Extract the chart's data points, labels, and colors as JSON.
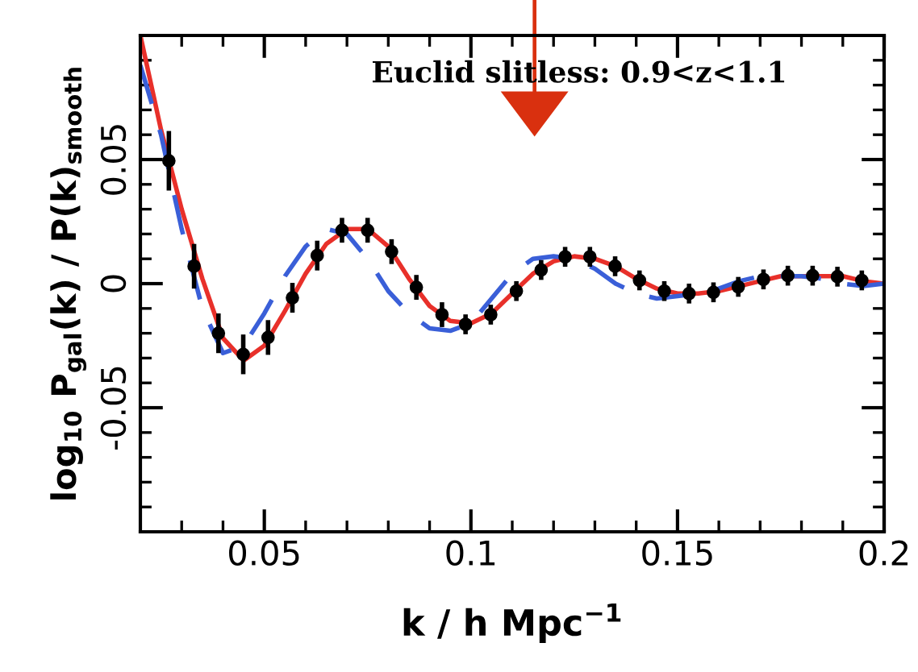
{
  "chart_data": {
    "type": "line",
    "xlabel": "k / h Mpc$^{−1}$",
    "ylabel": "log$_{10}$ P$_{gal}$(k) / P(k)$_{smooth}$",
    "annotations": [
      "Euclid slitless: 0.9<z<1.1"
    ],
    "xlim": [
      0.02,
      0.2
    ],
    "xticks": [
      0.05,
      0.1,
      0.15,
      0.2
    ],
    "ylim": [
      -0.1,
      0.1
    ],
    "yticks": [
      -0.05,
      0,
      0.05
    ],
    "grid": false,
    "legend": false,
    "series": [
      {
        "color": "#e8302a",
        "line_style": "solid",
        "x": [
          0.02,
          0.025,
          0.03,
          0.035,
          0.04,
          0.045,
          0.05,
          0.055,
          0.06,
          0.065,
          0.07,
          0.075,
          0.08,
          0.085,
          0.09,
          0.095,
          0.1,
          0.105,
          0.11,
          0.115,
          0.12,
          0.125,
          0.13,
          0.135,
          0.14,
          0.145,
          0.15,
          0.155,
          0.16,
          0.165,
          0.17,
          0.175,
          0.18,
          0.185,
          0.19,
          0.195,
          0.2
        ],
        "values": [
          0.1,
          0.062,
          0.03,
          0.002,
          -0.022,
          -0.031,
          -0.025,
          -0.011,
          0.004,
          0.016,
          0.022,
          0.022,
          0.015,
          0.002,
          -0.009,
          -0.015,
          -0.016,
          -0.012,
          -0.004,
          0.004,
          0.009,
          0.011,
          0.01,
          0.007,
          0.002,
          -0.002,
          -0.004,
          -0.004,
          -0.003,
          -0.001,
          0.001,
          0.003,
          0.003,
          0.003,
          0.003,
          0.001,
          0.0
        ]
      },
      {
        "color": "#3a5fd8",
        "line_style": "dashed",
        "x": [
          0.02,
          0.025,
          0.03,
          0.035,
          0.04,
          0.045,
          0.05,
          0.055,
          0.06,
          0.065,
          0.07,
          0.075,
          0.08,
          0.085,
          0.09,
          0.095,
          0.1,
          0.105,
          0.11,
          0.115,
          0.12,
          0.125,
          0.13,
          0.135,
          0.14,
          0.145,
          0.15,
          0.155,
          0.16,
          0.165,
          0.17,
          0.175,
          0.18,
          0.185,
          0.19,
          0.195,
          0.2
        ],
        "values": [
          0.088,
          0.06,
          0.022,
          -0.01,
          -0.028,
          -0.025,
          -0.012,
          0.003,
          0.015,
          0.022,
          0.02,
          0.01,
          -0.003,
          -0.012,
          -0.018,
          -0.019,
          -0.016,
          -0.006,
          0.004,
          0.01,
          0.011,
          0.01,
          0.006,
          0.0,
          -0.004,
          -0.006,
          -0.005,
          -0.004,
          -0.002,
          0.001,
          0.003,
          0.003,
          0.003,
          0.002,
          0.0,
          -0.001,
          0.0
        ]
      },
      {
        "type": "scatter",
        "color": "#000000",
        "marker": "circle",
        "x": [
          0.0269,
          0.033,
          0.0389,
          0.0449,
          0.0509,
          0.0568,
          0.0628,
          0.0688,
          0.075,
          0.0808,
          0.0868,
          0.093,
          0.0987,
          0.1048,
          0.111,
          0.117,
          0.1228,
          0.1288,
          0.1349,
          0.1408,
          0.1468,
          0.1528,
          0.1587,
          0.1647,
          0.1708,
          0.1767,
          0.1827,
          0.1887,
          0.1946
        ],
        "values": [
          0.0495,
          0.007,
          -0.02,
          -0.0285,
          -0.0217,
          -0.0057,
          0.0113,
          0.0215,
          0.0215,
          0.0129,
          -0.0015,
          -0.0125,
          -0.0164,
          -0.0125,
          -0.003,
          0.0055,
          0.0108,
          0.0108,
          0.007,
          0.0013,
          -0.003,
          -0.004,
          -0.0035,
          -0.0013,
          0.0017,
          0.0032,
          0.0032,
          0.0028,
          0.0013
        ],
        "errors": [
          0.012,
          0.009,
          0.008,
          0.008,
          0.007,
          0.006,
          0.006,
          0.005,
          0.005,
          0.005,
          0.005,
          0.005,
          0.004,
          0.004,
          0.004,
          0.004,
          0.004,
          0.004,
          0.004,
          0.004,
          0.004,
          0.004,
          0.004,
          0.004,
          0.004,
          0.004,
          0.004,
          0.004,
          0.004
        ]
      }
    ]
  }
}
